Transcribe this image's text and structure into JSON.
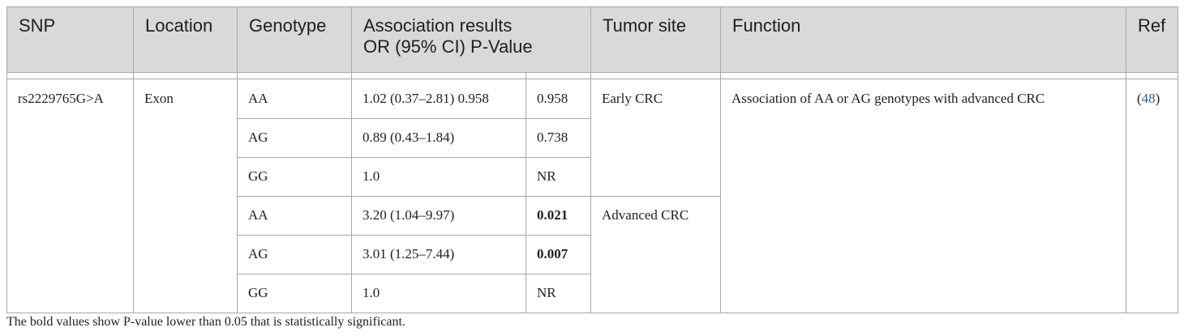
{
  "table": {
    "headers": [
      "SNP",
      "Location",
      "Genotype",
      "Association results OR (95% CI) P-Value",
      "Tumor site",
      "Function",
      "Ref"
    ],
    "header_lines": {
      "assoc_1": "Association results",
      "assoc_2": "OR (95% CI) P-Value"
    },
    "snp": "rs2229765G>A",
    "location": "Exon",
    "function": "Association of AA or AG genotypes with advanced CRC",
    "ref_open": "(",
    "ref_num": "48",
    "ref_close": ")",
    "rows": [
      {
        "genotype": "AA",
        "or_ci": "1.02 (0.37–2.81) 0.958",
        "p": "0.958",
        "bold": false
      },
      {
        "genotype": "AG",
        "or_ci": "0.89 (0.43–1.84)",
        "p": "0.738",
        "bold": false
      },
      {
        "genotype": "GG",
        "or_ci": "1.0",
        "p": "NR",
        "bold": false
      },
      {
        "genotype": "AA",
        "or_ci": "3.20 (1.04–9.97)",
        "p": "0.021",
        "bold": true
      },
      {
        "genotype": "AG",
        "or_ci": "3.01 (1.25–7.44)",
        "p": "0.007",
        "bold": true
      },
      {
        "genotype": "GG",
        "or_ci": "1.0",
        "p": "NR",
        "bold": false
      }
    ],
    "tumor_sites": [
      "Early CRC",
      "Advanced CRC"
    ]
  },
  "footnote": "The bold values show P-value lower than 0.05 that is statistically significant."
}
